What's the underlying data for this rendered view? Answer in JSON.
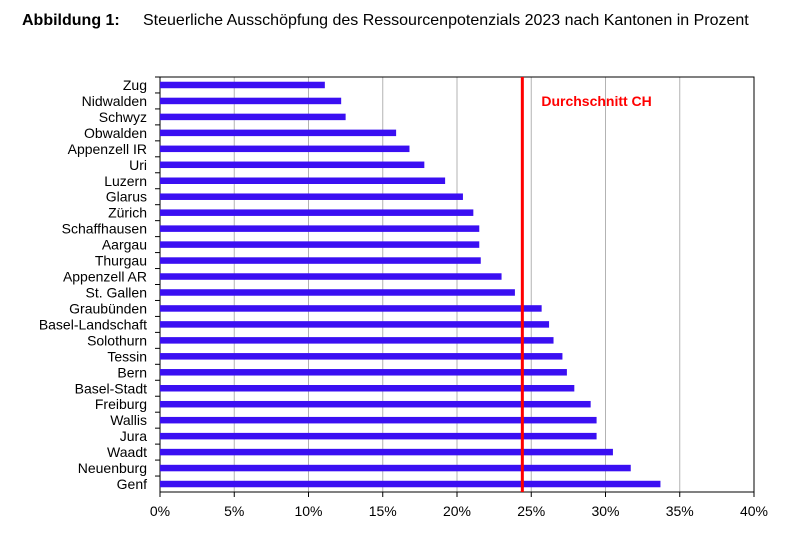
{
  "figure": {
    "label": "Abbildung 1:",
    "title": "Steuerliche Ausschöpfung des Ressourcenpotenzials 2023 nach Kantonen in Prozent"
  },
  "chart_data": {
    "type": "bar",
    "orientation": "horizontal",
    "categories": [
      "Zug",
      "Nidwalden",
      "Schwyz",
      "Obwalden",
      "Appenzell IR",
      "Uri",
      "Luzern",
      "Glarus",
      "Zürich",
      "Schaffhausen",
      "Aargau",
      "Thurgau",
      "Appenzell AR",
      "St. Gallen",
      "Graubünden",
      "Basel-Landschaft",
      "Solothurn",
      "Tessin",
      "Bern",
      "Basel-Stadt",
      "Freiburg",
      "Wallis",
      "Jura",
      "Waadt",
      "Neuenburg",
      "Genf"
    ],
    "values": [
      11.1,
      12.2,
      12.5,
      15.9,
      16.8,
      17.8,
      19.2,
      20.4,
      21.1,
      21.5,
      21.5,
      21.6,
      23.0,
      23.9,
      25.7,
      26.2,
      26.5,
      27.1,
      27.4,
      27.9,
      29.0,
      29.4,
      29.4,
      30.5,
      31.7,
      33.7
    ],
    "xlim": [
      0,
      40
    ],
    "xticks": [
      0,
      5,
      10,
      15,
      20,
      25,
      30,
      35,
      40
    ],
    "tick_suffix": "%",
    "grid": "vertical",
    "bar_color": "#3a0ff2",
    "reference_line": {
      "label": "Durchschnitt CH",
      "value": 24.4,
      "color": "#ff0000"
    }
  }
}
